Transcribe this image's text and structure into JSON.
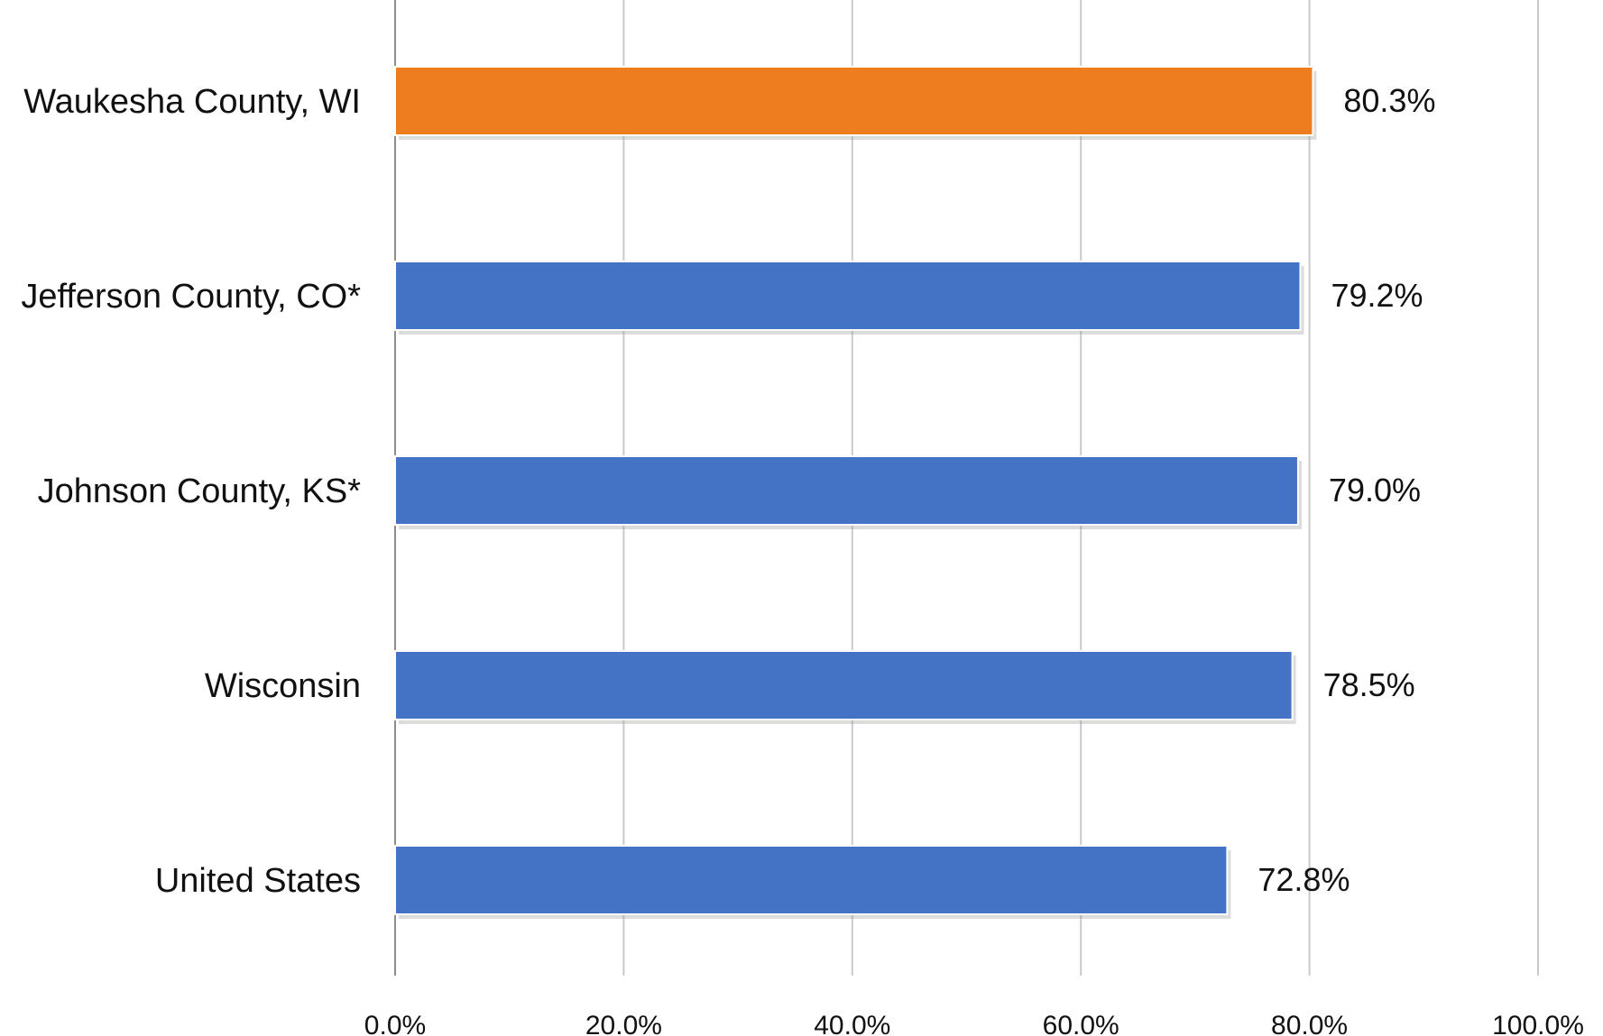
{
  "chart_data": {
    "type": "bar",
    "orientation": "horizontal",
    "categories": [
      "Waukesha County, WI",
      "Jefferson County, CO*",
      "Johnson County, KS*",
      "Wisconsin",
      "United States"
    ],
    "values": [
      80.3,
      79.2,
      79.0,
      78.5,
      72.8
    ],
    "value_labels": [
      "80.3%",
      "79.2%",
      "79.0%",
      "78.5%",
      "72.8%"
    ],
    "x_ticks": [
      0,
      20,
      40,
      60,
      80,
      100
    ],
    "x_tick_labels": [
      "0.0%",
      "20.0%",
      "40.0%",
      "60.0%",
      "80.0%",
      "100.0%"
    ],
    "xlim": [
      0,
      100
    ],
    "grid": true,
    "legend": "none",
    "title": "",
    "xlabel": "",
    "ylabel": "",
    "bar_colors": [
      "#ED7D1F",
      "#4472C4",
      "#4472C4",
      "#4472C4",
      "#4472C4"
    ]
  }
}
